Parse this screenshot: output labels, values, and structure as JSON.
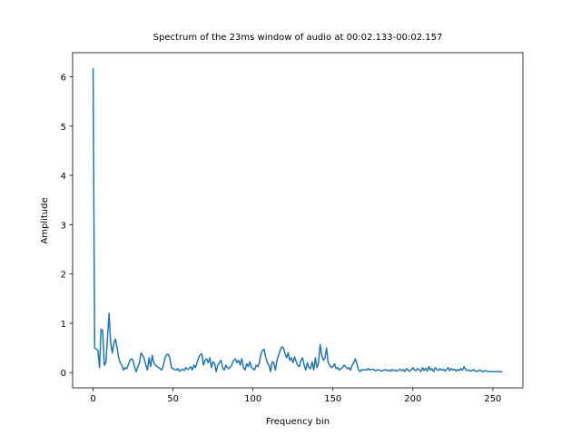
{
  "chart_data": {
    "type": "line",
    "title": "Spectrum of the 23ms window of audio at 00:02.133-00:02.157",
    "x_label": "Frequency bin",
    "y_label": "Amplitude",
    "xlim": [
      -12.8,
      268.8
    ],
    "xticks": [
      0,
      50,
      100,
      150,
      200,
      250
    ],
    "ylim": [
      -0.31,
      6.49
    ],
    "yticks": [
      0,
      1,
      2,
      3,
      4,
      5,
      6
    ],
    "grid": false,
    "series": [
      {
        "color": "#1f77b4",
        "x": [
          0,
          1,
          2,
          3,
          4,
          5,
          6,
          7,
          8,
          9,
          10,
          11,
          12,
          13,
          14,
          15,
          16,
          17,
          18,
          19,
          20,
          21,
          22,
          23,
          24,
          25,
          26,
          27,
          28,
          29,
          30,
          31,
          32,
          33,
          34,
          35,
          36,
          37,
          38,
          39,
          40,
          41,
          42,
          43,
          44,
          45,
          46,
          47,
          48,
          49,
          50,
          51,
          52,
          53,
          54,
          55,
          56,
          57,
          58,
          59,
          60,
          61,
          62,
          63,
          64,
          65,
          66,
          67,
          68,
          69,
          70,
          71,
          72,
          73,
          74,
          75,
          76,
          77,
          78,
          79,
          80,
          81,
          82,
          83,
          84,
          85,
          86,
          87,
          88,
          89,
          90,
          91,
          92,
          93,
          94,
          95,
          96,
          97,
          98,
          99,
          100,
          101,
          102,
          103,
          104,
          105,
          106,
          107,
          108,
          109,
          110,
          111,
          112,
          113,
          114,
          115,
          116,
          117,
          118,
          119,
          120,
          121,
          122,
          123,
          124,
          125,
          126,
          127,
          128,
          129,
          130,
          131,
          132,
          133,
          134,
          135,
          136,
          137,
          138,
          139,
          140,
          141,
          142,
          143,
          144,
          145,
          146,
          147,
          148,
          149,
          150,
          151,
          152,
          153,
          154,
          155,
          156,
          157,
          158,
          159,
          160,
          161,
          162,
          163,
          164,
          165,
          166,
          167,
          168,
          169,
          170,
          171,
          172,
          173,
          174,
          175,
          176,
          177,
          178,
          179,
          180,
          181,
          182,
          183,
          184,
          185,
          186,
          187,
          188,
          189,
          190,
          191,
          192,
          193,
          194,
          195,
          196,
          197,
          198,
          199,
          200,
          201,
          202,
          203,
          204,
          205,
          206,
          207,
          208,
          209,
          210,
          211,
          212,
          213,
          214,
          215,
          216,
          217,
          218,
          219,
          220,
          221,
          222,
          223,
          224,
          225,
          226,
          227,
          228,
          229,
          230,
          231,
          232,
          233,
          234,
          235,
          236,
          237,
          238,
          239,
          240,
          241,
          242,
          243,
          244,
          245,
          246,
          247,
          248,
          249,
          250,
          251,
          252,
          253,
          254,
          255,
          256
        ],
        "values": [
          6.18,
          0.5,
          0.48,
          0.45,
          0.1,
          0.88,
          0.85,
          0.15,
          0.2,
          0.7,
          1.2,
          0.6,
          0.4,
          0.6,
          0.68,
          0.5,
          0.3,
          0.2,
          0.15,
          0.05,
          0.1,
          0.08,
          0.15,
          0.25,
          0.28,
          0.25,
          0.1,
          0.02,
          0.12,
          0.2,
          0.4,
          0.35,
          0.28,
          0.15,
          0.05,
          0.3,
          0.12,
          0.35,
          0.2,
          0.15,
          0.12,
          0.1,
          0.08,
          0.05,
          0.15,
          0.3,
          0.36,
          0.37,
          0.3,
          0.1,
          0.08,
          0.06,
          0.05,
          0.08,
          0.03,
          0.05,
          0.07,
          0.04,
          0.1,
          0.06,
          0.08,
          0.12,
          0.05,
          0.15,
          0.1,
          0.2,
          0.3,
          0.36,
          0.38,
          0.15,
          0.25,
          0.28,
          0.2,
          0.3,
          0.1,
          0.22,
          0.18,
          0.02,
          0.15,
          0.2,
          0.25,
          0.1,
          0.05,
          0.15,
          0.1,
          0.08,
          0.12,
          0.18,
          0.25,
          0.28,
          0.2,
          0.25,
          0.15,
          0.28,
          0.1,
          0.05,
          0.18,
          0.12,
          0.22,
          0.1,
          0.08,
          0.05,
          0.15,
          0.12,
          0.2,
          0.38,
          0.45,
          0.47,
          0.3,
          0.2,
          0.15,
          0.02,
          0.22,
          0.2,
          0.05,
          0.25,
          0.35,
          0.45,
          0.52,
          0.5,
          0.38,
          0.3,
          0.4,
          0.25,
          0.3,
          0.2,
          0.32,
          0.22,
          0.15,
          0.12,
          0.25,
          0.3,
          0.15,
          0.05,
          0.2,
          0.1,
          0.08,
          0.22,
          0.05,
          0.3,
          0.1,
          0.2,
          0.57,
          0.35,
          0.25,
          0.3,
          0.5,
          0.2,
          0.15,
          0.1,
          0.12,
          0.18,
          0.08,
          0.1,
          0.05,
          0.08,
          0.1,
          0.15,
          0.12,
          0.08,
          0.1,
          0.05,
          0.15,
          0.2,
          0.28,
          0.18,
          0.05,
          0.02,
          0.06,
          0.05,
          0.06,
          0.05,
          0.08,
          0.05,
          0.06,
          0.07,
          0.05,
          0.04,
          0.06,
          0.05,
          0.03,
          0.04,
          0.05,
          0.06,
          0.04,
          0.05,
          0.03,
          0.06,
          0.04,
          0.05,
          0.03,
          0.05,
          0.07,
          0.04,
          0.06,
          0.02,
          0.08,
          0.05,
          0.03,
          0.06,
          0.1,
          0.05,
          0.04,
          0.08,
          0.06,
          0.02,
          0.1,
          0.04,
          0.09,
          0.03,
          0.12,
          0.05,
          0.08,
          0.02,
          0.1,
          0.06,
          0.04,
          0.08,
          0.05,
          0.07,
          0.03,
          0.06,
          0.1,
          0.04,
          0.08,
          0.05,
          0.07,
          0.03,
          0.06,
          0.04,
          0.08,
          0.05,
          0.12,
          0.06,
          0.04,
          0.05,
          0.03,
          0.04,
          0.06,
          0.03,
          0.02,
          0.04,
          0.05,
          0.03,
          0.02,
          0.04,
          0.03,
          0.02,
          0.03,
          0.02,
          0.02,
          0.02,
          0.02,
          0.02,
          0.02,
          0.02,
          0.02
        ]
      }
    ]
  }
}
